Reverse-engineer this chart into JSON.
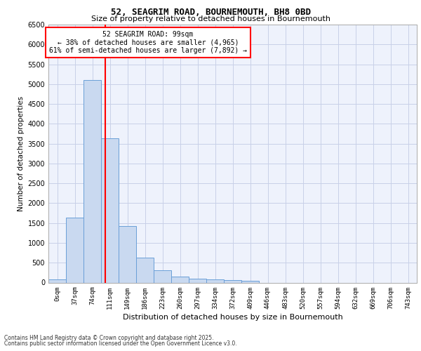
{
  "title": "52, SEAGRIM ROAD, BOURNEMOUTH, BH8 0BD",
  "subtitle": "Size of property relative to detached houses in Bournemouth",
  "xlabel": "Distribution of detached houses by size in Bournemouth",
  "ylabel": "Number of detached properties",
  "footer_line1": "Contains HM Land Registry data © Crown copyright and database right 2025.",
  "footer_line2": "Contains public sector information licensed under the Open Government Licence v3.0.",
  "bar_labels": [
    "0sqm",
    "37sqm",
    "74sqm",
    "111sqm",
    "149sqm",
    "186sqm",
    "223sqm",
    "260sqm",
    "297sqm",
    "334sqm",
    "372sqm",
    "409sqm",
    "446sqm",
    "483sqm",
    "520sqm",
    "557sqm",
    "594sqm",
    "632sqm",
    "669sqm",
    "706sqm",
    "743sqm"
  ],
  "bar_values": [
    75,
    1640,
    5100,
    3640,
    1430,
    620,
    310,
    145,
    100,
    75,
    60,
    45,
    0,
    0,
    0,
    0,
    0,
    0,
    0,
    0,
    0
  ],
  "bar_color": "#c9d9f0",
  "bar_edge_color": "#6a9fd8",
  "ylim": [
    0,
    6500
  ],
  "yticks": [
    0,
    500,
    1000,
    1500,
    2000,
    2500,
    3000,
    3500,
    4000,
    4500,
    5000,
    5500,
    6000,
    6500
  ],
  "vline_x": 2.72,
  "vline_color": "red",
  "annotation_text": "52 SEAGRIM ROAD: 99sqm\n← 38% of detached houses are smaller (4,965)\n61% of semi-detached houses are larger (7,892) →",
  "annotation_box_color": "red",
  "background_color": "#eef2fc",
  "grid_color": "#c8d0e8",
  "title_fontsize": 9,
  "subtitle_fontsize": 8
}
